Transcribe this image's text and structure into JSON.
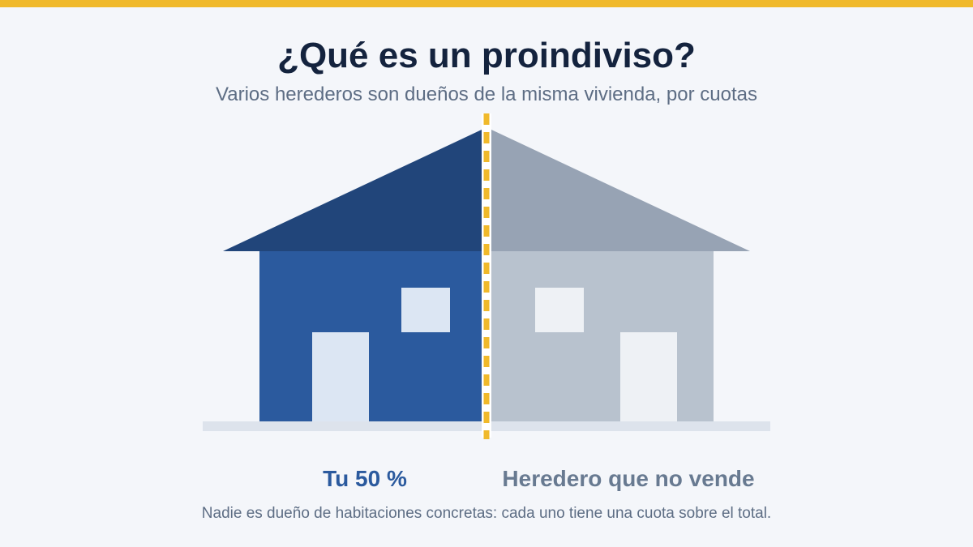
{
  "header": {
    "title": "¿Qué es un proindiviso?",
    "subtitle": "Varios herederos son dueños de la misma vivienda, por cuotas"
  },
  "labels": {
    "left": "Tu 50 %",
    "right": "Heredero que no vende"
  },
  "footnote": "Nadie es dueño de habitaciones concretas: cada uno tiene una cuota sobre el total."
}
